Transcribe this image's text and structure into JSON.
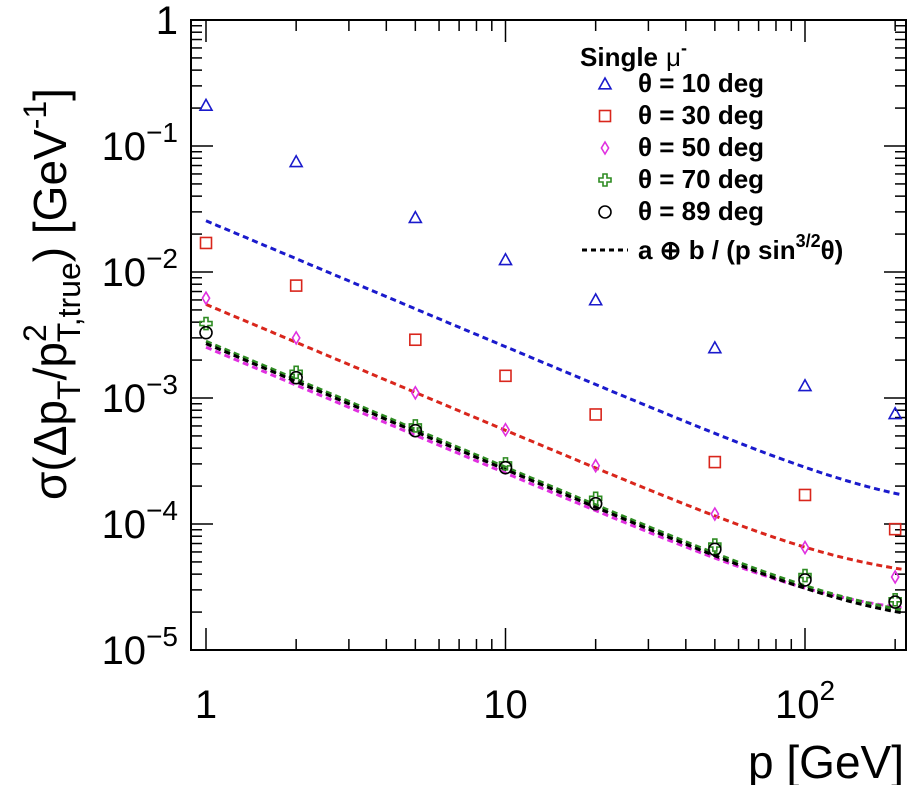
{
  "chart_data": {
    "type": "scatter",
    "title": "",
    "xlabel": "p [GeV]",
    "ylabel": "σ(Δp_T/p²_T,true) [GeV⁻¹]",
    "xscale": "log",
    "yscale": "log",
    "xlim": [
      0.9,
      210
    ],
    "ylim": [
      1e-05,
      1
    ],
    "grid": false,
    "x_tick_labels": [
      {
        "value": 1,
        "label": "1"
      },
      {
        "value": 10,
        "label": "10"
      },
      {
        "value": 100,
        "label": "10",
        "exp": "2"
      }
    ],
    "y_tick_labels": [
      {
        "value": 1,
        "label": "1"
      },
      {
        "value": 0.1,
        "label": "10",
        "exp": "−1"
      },
      {
        "value": 0.01,
        "label": "10",
        "exp": "−2"
      },
      {
        "value": 0.001,
        "label": "10",
        "exp": "−3"
      },
      {
        "value": 0.0001,
        "label": "10",
        "exp": "−4"
      },
      {
        "value": 1e-05,
        "label": "10",
        "exp": "−5"
      }
    ],
    "legend": {
      "position": "top-right",
      "header": "Single",
      "header_symbol": "μ",
      "header_sup": "-",
      "fit_label": "a ⊕ b / (p sin",
      "fit_sup": "3/2",
      "fit_tail": "θ)"
    },
    "x": [
      1,
      2,
      5,
      10,
      20,
      50,
      100,
      200
    ],
    "series": [
      {
        "name": "θ = 10 deg",
        "marker": "triangle",
        "color": "#1a1acc",
        "values": [
          0.21,
          0.075,
          0.027,
          0.0125,
          0.006,
          0.0025,
          0.00125,
          0.00075
        ],
        "fit": {
          "a": 0.00012,
          "b": 0.0255
        }
      },
      {
        "name": "θ = 30 deg",
        "marker": "square",
        "color": "#d9261c",
        "values": [
          0.017,
          0.0078,
          0.0029,
          0.0015,
          0.00074,
          0.00031,
          0.00017,
          9.1e-05
        ],
        "fit": {
          "a": 3.5e-05,
          "b": 0.00553
        }
      },
      {
        "name": "θ = 50 deg",
        "marker": "diamond",
        "color": "#e030e0",
        "values": [
          0.0062,
          0.003,
          0.0011,
          0.00056,
          0.00029,
          0.00012,
          6.5e-05,
          3.8e-05
        ],
        "fit": {
          "a": 1.8e-05,
          "b": 0.00253
        }
      },
      {
        "name": "θ = 70 deg",
        "marker": "cross",
        "color": "#2e8b22",
        "values": [
          0.0039,
          0.0016,
          0.0006,
          0.0003,
          0.00016,
          6.8e-05,
          3.9e-05,
          2.5e-05
        ],
        "fit": {
          "a": 1.6e-05,
          "b": 0.00282
        }
      },
      {
        "name": "θ = 89 deg",
        "marker": "circle",
        "color": "#000000",
        "values": [
          0.0033,
          0.00145,
          0.00055,
          0.00028,
          0.000145,
          6.3e-05,
          3.6e-05,
          2.4e-05
        ],
        "fit": {
          "a": 1.5e-05,
          "b": 0.0027
        }
      }
    ]
  }
}
